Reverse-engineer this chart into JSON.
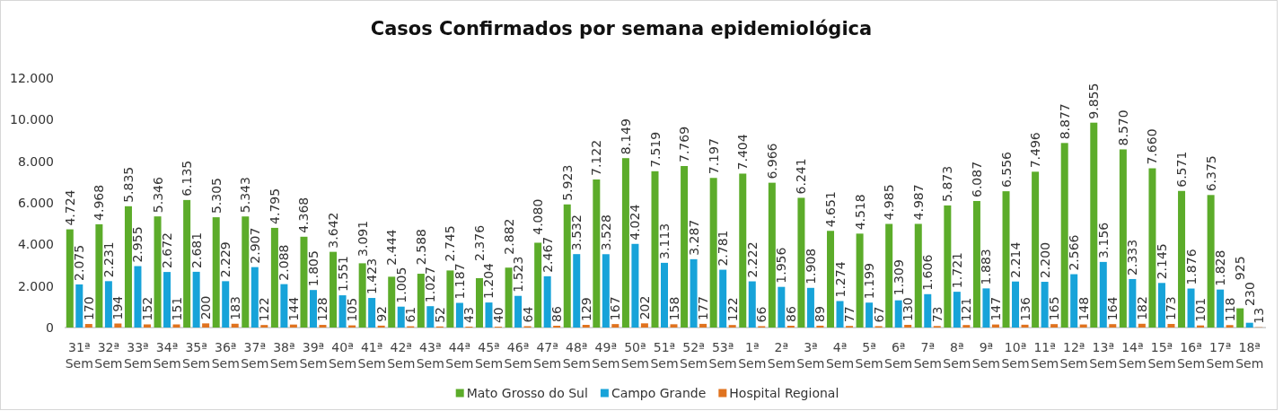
{
  "chart_data": {
    "type": "bar",
    "title": "Casos Confirmados por semana epidemiológica",
    "categories": [
      "31ª Sem",
      "32ª Sem",
      "33ª Sem",
      "34ª Sem",
      "35ª Sem",
      "36ª Sem",
      "37ª Sem",
      "38ª Sem",
      "39ª Sem",
      "40ª Sem",
      "41ª Sem",
      "42ª Sem",
      "43ª Sem",
      "44ª Sem",
      "45ª Sem",
      "46ª Sem",
      "47ª Sem",
      "48ª Sem",
      "49ª Sem",
      "50ª Sem",
      "51ª Sem",
      "52ª Sem",
      "53ª Sem",
      "1ª Sem",
      "2ª Sem",
      "3ª Sem",
      "4ª Sem",
      "5ª Sem",
      "6ª Sem",
      "7ª Sem",
      "8ª Sem",
      "9ª Sem",
      "10ª Sem",
      "11ª Sem",
      "12ª Sem",
      "13ª Sem",
      "14ª Sem",
      "15ª Sem",
      "16ª Sem",
      "17ª Sem",
      "18ª Sem"
    ],
    "series": [
      {
        "name": "Mato Grosso do Sul",
        "color": "#5cac2a",
        "values": [
          4724,
          4968,
          5835,
          5346,
          6135,
          5305,
          5343,
          4795,
          4368,
          3642,
          3091,
          2444,
          2588,
          2745,
          2376,
          2882,
          4080,
          5923,
          7122,
          8149,
          7519,
          7769,
          7197,
          7404,
          6966,
          6241,
          4651,
          4518,
          4985,
          4987,
          5873,
          6087,
          6556,
          7496,
          8877,
          9855,
          8570,
          7660,
          6571,
          6375,
          925
        ],
        "value_labels": [
          "4.724",
          "4.968",
          "5.835",
          "5.346",
          "6.135",
          "5.305",
          "5.343",
          "4.795",
          "4.368",
          "3.642",
          "3.091",
          "2.444",
          "2.588",
          "2.745",
          "2.376",
          "2.882",
          "4.080",
          "5.923",
          "7.122",
          "8.149",
          "7.519",
          "7.769",
          "7.197",
          "7.404",
          "6.966",
          "6.241",
          "4.651",
          "4.518",
          "4.985",
          "4.987",
          "5.873",
          "6.087",
          "6.556",
          "7.496",
          "8.877",
          "9.855",
          "8.570",
          "7.660",
          "6.571",
          "6.375",
          "925"
        ]
      },
      {
        "name": "Campo Grande",
        "color": "#17a3d9",
        "values": [
          2075,
          2231,
          2955,
          2672,
          2681,
          2229,
          2907,
          2088,
          1805,
          1551,
          1423,
          1005,
          1027,
          1187,
          1204,
          1523,
          2467,
          3532,
          3528,
          4024,
          3113,
          3287,
          2781,
          2222,
          1956,
          1908,
          1274,
          1199,
          1309,
          1606,
          1721,
          1883,
          2214,
          2200,
          2566,
          3156,
          2333,
          2145,
          1876,
          1828,
          230
        ],
        "value_labels": [
          "2.075",
          "2.231",
          "2.955",
          "2.672",
          "2.681",
          "2.229",
          "2.907",
          "2.088",
          "1.805",
          "1.551",
          "1.423",
          "1.005",
          "1.027",
          "1.187",
          "1.204",
          "1.523",
          "2.467",
          "3.532",
          "3.528",
          "4.024",
          "3.113",
          "3.287",
          "2.781",
          "2.222",
          "1.956",
          "1.908",
          "1.274",
          "1.199",
          "1.309",
          "1.606",
          "1.721",
          "1.883",
          "2.214",
          "2.200",
          "2.566",
          "3.156",
          "2.333",
          "2.145",
          "1.876",
          "1.828",
          "230"
        ]
      },
      {
        "name": "Hospital Regional",
        "color": "#e0731f",
        "values": [
          170,
          194,
          152,
          151,
          200,
          183,
          122,
          144,
          128,
          105,
          92,
          61,
          52,
          43,
          40,
          64,
          86,
          129,
          167,
          202,
          158,
          177,
          122,
          66,
          86,
          89,
          77,
          67,
          130,
          73,
          121,
          147,
          136,
          165,
          148,
          164,
          182,
          173,
          101,
          118,
          13
        ],
        "value_labels": [
          "170",
          "194",
          "152",
          "151",
          "200",
          "183",
          "122",
          "144",
          "128",
          "105",
          "92",
          "61",
          "52",
          "43",
          "40",
          "64",
          "86",
          "129",
          "167",
          "202",
          "158",
          "177",
          "122",
          "66",
          "86",
          "89",
          "77",
          "67",
          "130",
          "73",
          "121",
          "147",
          "136",
          "165",
          "148",
          "164",
          "182",
          "173",
          "101",
          "118",
          "13"
        ]
      }
    ],
    "ylim": [
      0,
      12000
    ],
    "yticks": [
      0,
      {
        "value": 2000,
        "label": "2.000"
      },
      {
        "value": 4000,
        "label": "4.000"
      },
      {
        "value": 6000,
        "label": "6.000"
      },
      {
        "value": 8000,
        "label": "8.000"
      },
      {
        "value": 10000,
        "label": "10.000"
      },
      {
        "value": 12000,
        "label": "12.000"
      }
    ],
    "legend": "bottom"
  }
}
